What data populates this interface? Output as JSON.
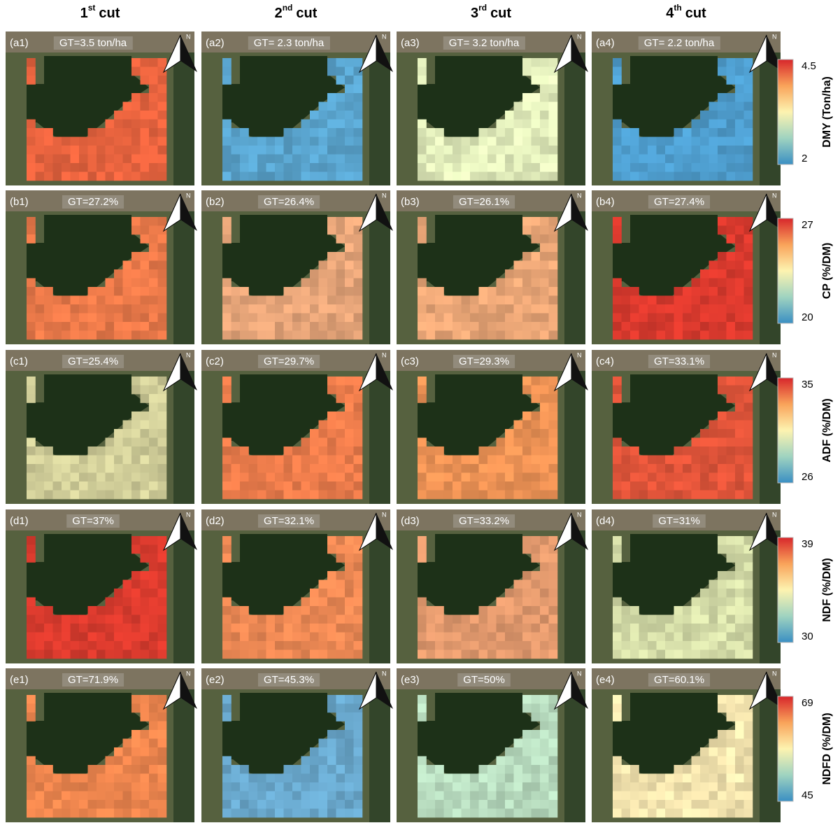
{
  "column_headers": [
    {
      "number": "1",
      "suffix": "st",
      "word": "cut"
    },
    {
      "number": "2",
      "suffix": "nd",
      "word": "cut"
    },
    {
      "number": "3",
      "suffix": "rd",
      "word": "cut"
    },
    {
      "number": "4",
      "suffix": "th",
      "word": "cut"
    }
  ],
  "north": "N",
  "rows": [
    {
      "panels": [
        {
          "label": "(a1)",
          "gt": "GT=3.5 ton/ha",
          "color": "#e9643f"
        },
        {
          "label": "(a2)",
          "gt": "GT= 2.3 ton/ha",
          "color": "#5aa5cf"
        },
        {
          "label": "(a3)",
          "gt": "GT= 3.2 ton/ha",
          "color": "#e3eebc"
        },
        {
          "label": "(a4)",
          "gt": "GT= 2.2 ton/ha",
          "color": "#4f9fd0"
        }
      ]
    },
    {
      "panels": [
        {
          "label": "(b1)",
          "gt": "GT=27.2%",
          "color": "#ec7a4a"
        },
        {
          "label": "(b2)",
          "gt": "GT=26.4%",
          "color": "#e8a67a"
        },
        {
          "label": "(b3)",
          "gt": "GT=26.1%",
          "color": "#eda878"
        },
        {
          "label": "(b4)",
          "gt": "GT=27.4%",
          "color": "#dc3a2e"
        }
      ]
    },
    {
      "panels": [
        {
          "label": "(c1)",
          "gt": "GT=25.4%",
          "color": "#d2cf9a"
        },
        {
          "label": "(c2)",
          "gt": "GT=29.7%",
          "color": "#ee7d4c"
        },
        {
          "label": "(c3)",
          "gt": "GT=29.3%",
          "color": "#f09456"
        },
        {
          "label": "(c4)",
          "gt": "GT=33.1%",
          "color": "#e2553a"
        }
      ]
    },
    {
      "panels": [
        {
          "label": "(d1)",
          "gt": "GT=37%",
          "color": "#db3b2e"
        },
        {
          "label": "(d2)",
          "gt": "GT=32.1%",
          "color": "#ef8a55"
        },
        {
          "label": "(d3)",
          "gt": "GT=33.2%",
          "color": "#e39a6e"
        },
        {
          "label": "(d4)",
          "gt": "GT=31%",
          "color": "#d7dfaa"
        }
      ]
    },
    {
      "panels": [
        {
          "label": "(e1)",
          "gt": "GT=71.9%",
          "color": "#f0874f"
        },
        {
          "label": "(e2)",
          "gt": "GT=45.3%",
          "color": "#6aa9ce"
        },
        {
          "label": "(e3)",
          "gt": "GT=50%",
          "color": "#b9ddc0"
        },
        {
          "label": "(e4)",
          "gt": "GT=60.1%",
          "color": "#f6e6b0"
        }
      ]
    }
  ],
  "colorbars": [
    {
      "title": "DMY (Ton/ha)",
      "max": "4.5",
      "min": "2"
    },
    {
      "title": "CP (%/DM)",
      "max": "27",
      "min": "20"
    },
    {
      "title": "ADF (%/DM)",
      "max": "35",
      "min": "26"
    },
    {
      "title": "NDF (%/DM)",
      "max": "39",
      "min": "30"
    },
    {
      "title": "NDFD (%/DM)",
      "max": "69",
      "min": "45"
    }
  ]
}
